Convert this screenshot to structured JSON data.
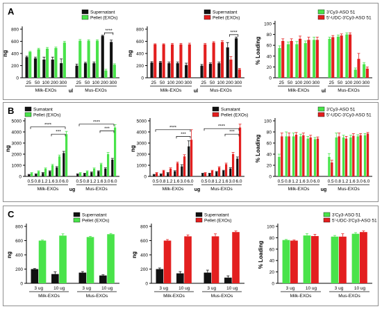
{
  "colors": {
    "black": "#111111",
    "green": "#49e34a",
    "red": "#e31f1f",
    "axis": "#000000"
  },
  "panels": [
    {
      "letter": "A"
    },
    {
      "letter": "B"
    },
    {
      "letter": "C"
    }
  ],
  "chart_data": [
    {
      "id": "A1",
      "type": "bar",
      "panel": "A",
      "ylabel": "ng",
      "ylim": [
        0,
        800
      ],
      "yticks": [
        0,
        200,
        400,
        600,
        800
      ],
      "categories": [
        "25",
        "50",
        "100",
        "200",
        "300",
        "25",
        "50",
        "100",
        "200",
        "300"
      ],
      "groups": [
        {
          "label": "Milk-EXOs",
          "from": 0,
          "to": 4
        },
        {
          "label": "Mus-EXOs",
          "from": 5,
          "to": 9
        }
      ],
      "xunit": "ul",
      "legend": "top-right",
      "series": [
        {
          "name": "Supernatant",
          "color": "black",
          "values": [
            340,
            320,
            300,
            300,
            240,
            200,
            240,
            240,
            690,
            590
          ],
          "err": [
            15,
            20,
            40,
            40,
            70,
            25,
            15,
            20,
            10,
            30
          ]
        },
        {
          "name": "Pellet (EXOs)",
          "color": "green",
          "values": [
            425,
            470,
            480,
            490,
            580,
            610,
            610,
            610,
            120,
            215
          ],
          "err": [
            10,
            15,
            20,
            15,
            20,
            20,
            15,
            15,
            20,
            15
          ]
        }
      ],
      "significance": [
        {
          "from": 8,
          "to": 9,
          "label": "****"
        }
      ]
    },
    {
      "id": "A2",
      "type": "bar",
      "panel": "A",
      "ylabel": "ng",
      "ylim": [
        0,
        800
      ],
      "yticks": [
        0,
        200,
        400,
        600,
        800
      ],
      "categories": [
        "25",
        "50",
        "100",
        "200",
        "300",
        "25",
        "50",
        "100",
        "200",
        "300"
      ],
      "groups": [
        {
          "label": "Milk-EXOs",
          "from": 0,
          "to": 4
        },
        {
          "label": "Mus-EXOs",
          "from": 5,
          "to": 9
        }
      ],
      "xunit": "ul",
      "legend": "top-right",
      "series": [
        {
          "name": "Supernatant",
          "color": "black",
          "values": [
            250,
            255,
            240,
            240,
            210,
            200,
            230,
            240,
            500,
            650
          ],
          "err": [
            15,
            15,
            20,
            20,
            30,
            20,
            15,
            20,
            80,
            20
          ]
        },
        {
          "name": "Pellet (EXOs)",
          "color": "red",
          "values": [
            550,
            550,
            550,
            550,
            550,
            550,
            580,
            590,
            300,
            140
          ],
          "err": [
            10,
            10,
            15,
            15,
            20,
            15,
            15,
            20,
            50,
            15
          ]
        }
      ],
      "significance": [
        {
          "from": 8,
          "to": 9,
          "label": "****"
        }
      ]
    },
    {
      "id": "A3",
      "type": "bar",
      "panel": "A",
      "ylabel": "% Loading",
      "ylim": [
        0,
        100
      ],
      "yticks": [
        0,
        20,
        40,
        60,
        80,
        100
      ],
      "categories": [
        "25",
        "50",
        "100",
        "200",
        "300",
        "25",
        "50",
        "100",
        "200",
        "300"
      ],
      "groups": [
        {
          "label": "Milk-EXOs",
          "from": 0,
          "to": 4
        },
        {
          "label": "Mus-EXOs",
          "from": 5,
          "to": 9
        }
      ],
      "xunit": "ul",
      "legend": "top-right",
      "series": [
        {
          "name": "3'Cy3-ASO 51",
          "color": "green",
          "values": [
            55,
            62,
            62,
            64,
            70,
            72,
            76,
            80,
            15,
            25
          ],
          "err": [
            4,
            4,
            5,
            4,
            5,
            3,
            3,
            3,
            3,
            3
          ]
        },
        {
          "name": "5'-UDC-3'Cy3-ASO 51",
          "color": "red",
          "values": [
            68,
            68,
            72,
            70,
            70,
            75,
            78,
            80,
            35,
            17
          ],
          "err": [
            4,
            4,
            5,
            5,
            5,
            3,
            3,
            3,
            10,
            3
          ]
        }
      ],
      "significance": []
    },
    {
      "id": "B1",
      "type": "bar",
      "panel": "B",
      "ylabel": "ng",
      "ylim": [
        0,
        5000
      ],
      "yticks": [
        0,
        1000,
        2000,
        3000,
        4000,
        5000
      ],
      "categories": [
        "0.5",
        "0.8",
        "1.2",
        "1.6",
        "3.0",
        "6.0",
        "0.5",
        "0.8",
        "1.2",
        "1.6",
        "3.0",
        "6.0"
      ],
      "groups": [
        {
          "label": "Milk-EXOs",
          "from": 0,
          "to": 5
        },
        {
          "label": "Mus-EXOs",
          "from": 6,
          "to": 11
        }
      ],
      "xunit": "ug",
      "legend": "top-left",
      "series": [
        {
          "name": "Sumatant",
          "color": "black",
          "values": [
            150,
            200,
            300,
            450,
            800,
            2100,
            200,
            250,
            350,
            450,
            700,
            1500
          ],
          "err": [
            30,
            30,
            40,
            50,
            80,
            150,
            30,
            30,
            40,
            50,
            70,
            120
          ]
        },
        {
          "name": "Pellet (EXOs)",
          "color": "green",
          "values": [
            300,
            450,
            700,
            1000,
            1800,
            3800,
            300,
            450,
            700,
            1100,
            2000,
            4400
          ],
          "err": [
            40,
            50,
            60,
            80,
            120,
            250,
            40,
            50,
            60,
            80,
            150,
            250
          ]
        }
      ],
      "significance": [
        {
          "from": 0,
          "to": 5,
          "label": "****",
          "level": 4450
        },
        {
          "from": 3,
          "to": 5,
          "label": "***",
          "level": 3800
        },
        {
          "from": 6,
          "to": 11,
          "label": "****",
          "level": 4700
        },
        {
          "from": 9,
          "to": 11,
          "label": "***",
          "level": 4100
        }
      ]
    },
    {
      "id": "B2",
      "type": "bar",
      "panel": "B",
      "ylabel": "ng",
      "ylim": [
        0,
        5000
      ],
      "yticks": [
        0,
        1000,
        2000,
        3000,
        4000,
        5000
      ],
      "categories": [
        "0.5",
        "0.8",
        "1.2",
        "1.6",
        "3.0",
        "6.0",
        "0.5",
        "0.8",
        "1.2",
        "1.6",
        "3.0",
        "6.0"
      ],
      "groups": [
        {
          "label": "Milk-EXOs",
          "from": 0,
          "to": 5
        },
        {
          "label": "Mus-EXOs",
          "from": 6,
          "to": 11
        }
      ],
      "xunit": "ug",
      "legend": "top-right",
      "series": [
        {
          "name": "Sumatant",
          "color": "black",
          "values": [
            150,
            200,
            300,
            450,
            900,
            2700,
            250,
            250,
            400,
            500,
            700,
            1600
          ],
          "err": [
            30,
            30,
            40,
            60,
            150,
            500,
            30,
            30,
            40,
            50,
            80,
            150
          ]
        },
        {
          "name": "Pellet (EXOs)",
          "color": "red",
          "values": [
            300,
            500,
            700,
            1200,
            1800,
            3300,
            300,
            500,
            800,
            1100,
            2000,
            4400
          ],
          "err": [
            40,
            50,
            70,
            90,
            150,
            900,
            40,
            50,
            70,
            90,
            150,
            300
          ]
        }
      ],
      "significance": [
        {
          "from": 0,
          "to": 5,
          "label": "****",
          "level": 4200
        },
        {
          "from": 3,
          "to": 5,
          "label": "***",
          "level": 3600
        },
        {
          "from": 6,
          "to": 11,
          "label": "****",
          "level": 4300
        },
        {
          "from": 9,
          "to": 11,
          "label": "***",
          "level": 3800
        }
      ]
    },
    {
      "id": "B3",
      "type": "bar",
      "panel": "B",
      "ylabel": "% Loading",
      "ylim": [
        0,
        100
      ],
      "yticks": [
        0,
        20,
        40,
        60,
        80,
        100
      ],
      "categories": [
        "0.5",
        "0.8",
        "1.2",
        "1.6",
        "3.0",
        "6.0",
        "0.5",
        "0.8",
        "1.2",
        "1.6",
        "3.0",
        "6.0"
      ],
      "groups": [
        {
          "label": "Milk-EXOs",
          "from": 0,
          "to": 5
        },
        {
          "label": "Mus-EXOs",
          "from": 6,
          "to": 11
        }
      ],
      "xunit": "ug",
      "legend": "top-right",
      "series": [
        {
          "name": "3'Cy3-ASO 51",
          "color": "green",
          "values": [
            35,
            72,
            72,
            72,
            68,
            67,
            35,
            70,
            70,
            70,
            72,
            74
          ],
          "err": [
            5,
            8,
            6,
            4,
            4,
            3,
            6,
            8,
            4,
            4,
            3,
            3
          ]
        },
        {
          "name": "5'-UDC-3'Cy3-ASO 51",
          "color": "red",
          "values": [
            72,
            72,
            75,
            74,
            70,
            68,
            25,
            72,
            68,
            73,
            74,
            77
          ],
          "err": [
            6,
            6,
            4,
            4,
            4,
            3,
            4,
            6,
            4,
            4,
            3,
            2
          ]
        }
      ],
      "significance": []
    },
    {
      "id": "C1",
      "type": "bar",
      "panel": "C",
      "ylabel": "ng",
      "ylim": [
        0,
        800
      ],
      "yticks": [
        0,
        200,
        400,
        600,
        800
      ],
      "categories": [
        "3 ug",
        "10 ug",
        "3 ug",
        "10 ug"
      ],
      "groups": [
        {
          "label": "Milk-EXOs",
          "from": 0,
          "to": 1
        },
        {
          "label": "Mus-EXOs",
          "from": 2,
          "to": 3
        }
      ],
      "xunit": "",
      "legend": "top-right",
      "series": [
        {
          "name": "Supernatant",
          "color": "black",
          "values": [
            200,
            130,
            150,
            110
          ],
          "err": [
            8,
            30,
            15,
            10
          ]
        },
        {
          "name": "Pellet (EXOs)",
          "color": "green",
          "values": [
            600,
            670,
            650,
            690
          ],
          "err": [
            8,
            25,
            10,
            10
          ]
        }
      ],
      "significance": []
    },
    {
      "id": "C2",
      "type": "bar",
      "panel": "C",
      "ylabel": "ng",
      "ylim": [
        0,
        800
      ],
      "yticks": [
        0,
        200,
        400,
        600,
        800
      ],
      "categories": [
        "3 ug",
        "10 ug",
        "3 ug",
        "10 ug"
      ],
      "groups": [
        {
          "label": "Milk-EXOs",
          "from": 0,
          "to": 1
        },
        {
          "label": "Mus-EXOs",
          "from": 2,
          "to": 3
        }
      ],
      "xunit": "",
      "legend": "top-right",
      "series": [
        {
          "name": "Supernatant",
          "color": "black",
          "values": [
            200,
            140,
            150,
            80
          ],
          "err": [
            15,
            25,
            35,
            25
          ]
        },
        {
          "name": "Pellet (EXOs)",
          "color": "red",
          "values": [
            600,
            660,
            660,
            720
          ],
          "err": [
            15,
            20,
            35,
            15
          ]
        }
      ],
      "significance": []
    },
    {
      "id": "C3",
      "type": "bar",
      "panel": "C",
      "ylabel": "% Loading",
      "ylim": [
        0,
        100
      ],
      "yticks": [
        0,
        20,
        40,
        60,
        80,
        100
      ],
      "categories": [
        "3 ug",
        "10 ug",
        "3 ug",
        "10 ug"
      ],
      "groups": [
        {
          "label": "Milk-EXOs",
          "from": 0,
          "to": 1
        },
        {
          "label": "Mus-EXOs",
          "from": 2,
          "to": 3
        }
      ],
      "xunit": "",
      "legend": "top-right",
      "series": [
        {
          "name": "3'Cy3-ASO 51",
          "color": "green",
          "values": [
            76,
            84,
            82,
            87
          ],
          "err": [
            1,
            3,
            2,
            2
          ]
        },
        {
          "name": "5'-UDC-3'Cy3-ASO 51",
          "color": "red",
          "values": [
            75,
            83,
            82,
            90
          ],
          "err": [
            1,
            3,
            5,
            2
          ]
        }
      ],
      "significance": []
    }
  ]
}
